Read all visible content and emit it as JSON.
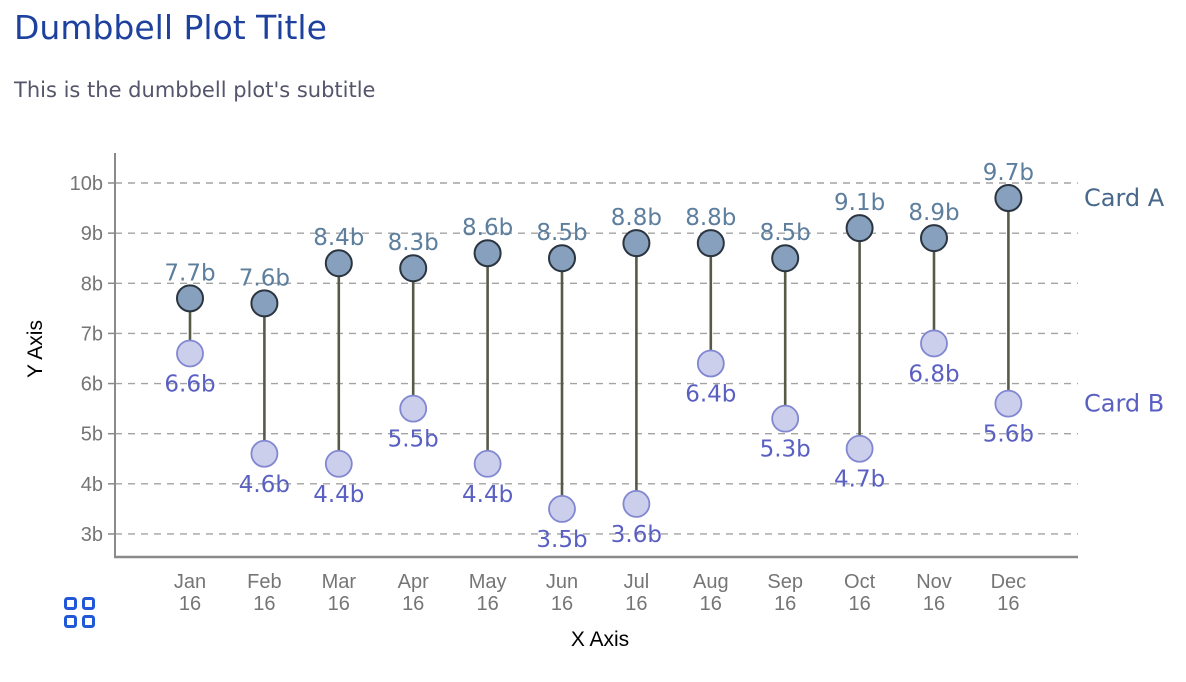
{
  "title": "Dumbbell Plot Title",
  "subtitle": "This is the dumbbell plot's subtitle",
  "chart_data": {
    "type": "dumbbell",
    "categories": [
      "Jan 16",
      "Feb 16",
      "Mar 16",
      "Apr 16",
      "May 16",
      "Jun 16",
      "Jul 16",
      "Aug 16",
      "Sep 16",
      "Oct 16",
      "Nov 16",
      "Dec 16"
    ],
    "series": [
      {
        "name": "Card A",
        "values": [
          7.7,
          7.6,
          8.4,
          8.3,
          8.6,
          8.5,
          8.8,
          8.8,
          8.5,
          9.1,
          8.9,
          9.7
        ],
        "labels": [
          "7.7b",
          "7.6b",
          "8.4b",
          "8.3b",
          "8.6b",
          "8.5b",
          "8.8b",
          "8.8b",
          "8.5b",
          "9.1b",
          "8.9b",
          "9.7b"
        ]
      },
      {
        "name": "Card B",
        "values": [
          6.6,
          4.6,
          4.4,
          5.5,
          4.4,
          3.5,
          3.6,
          6.4,
          5.3,
          4.7,
          6.8,
          5.6
        ],
        "labels": [
          "6.6b",
          "4.6b",
          "4.4b",
          "5.5b",
          "4.4b",
          "3.5b",
          "3.6b",
          "6.4b",
          "5.3b",
          "4.7b",
          "6.8b",
          "5.6b"
        ]
      }
    ],
    "xlabel": "X Axis",
    "ylabel": "Y Axis",
    "yticks": [
      3,
      4,
      5,
      6,
      7,
      8,
      9,
      10
    ],
    "ytick_labels": [
      "3b",
      "4b",
      "5b",
      "6b",
      "7b",
      "8b",
      "9b",
      "10b"
    ],
    "ylim": [
      2.5,
      10.6
    ],
    "grid": "horizontal-dashed",
    "legend_position": "right"
  },
  "colors": {
    "title": "#1e419e",
    "subtitle": "#54546a",
    "series_a_fill": "#87a0bd",
    "series_a_stroke": "#2b3540",
    "series_a_label": "#5d7e9d",
    "series_a_legend": "#47688a",
    "series_b_fill": "#cccfec",
    "series_b_stroke": "#8187d1",
    "series_b_label": "#5a60c2",
    "series_b_legend": "#5a60c2",
    "connector": "#565b48",
    "gridline": "#a3a3a3",
    "axis": "#8a8a8a",
    "tick_text": "#757575",
    "axis_title_text": "#000000",
    "grid_icon": "#2158d8"
  },
  "footer": {
    "icon": "grid-icon"
  }
}
